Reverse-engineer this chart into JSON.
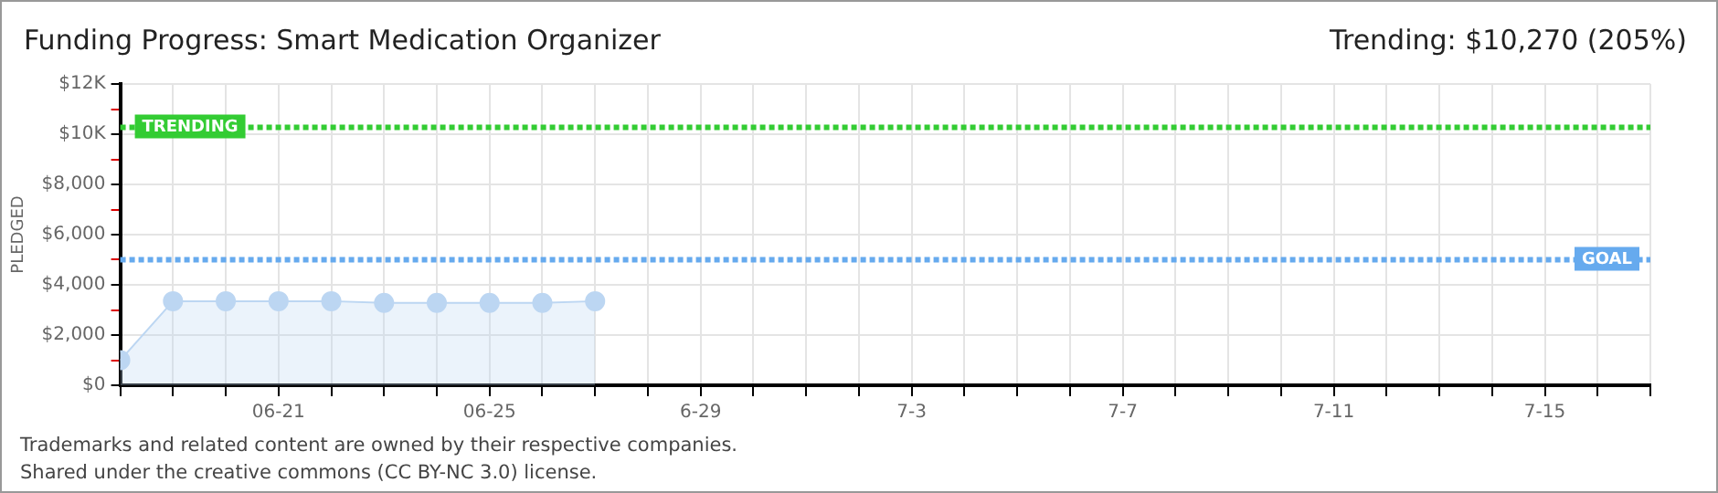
{
  "chart_data": {
    "type": "area",
    "title": "Funding Progress: Smart Medication Organizer",
    "subtitle": "Trending:  $10,270 (205%)",
    "ylabel": "PLEDGED",
    "x": [
      "--06-18",
      "--06-19",
      "--06-20",
      "--06-21",
      "--06-22",
      "--06-23",
      "--06-24",
      "--06-25",
      "--06-26",
      "--06-27"
    ],
    "series": [
      {
        "color": "#bcd6f2",
        "values": [
          1000,
          3350,
          3350,
          3350,
          3350,
          3280,
          3280,
          3280,
          3280,
          3350
        ]
      }
    ],
    "marker": "circle",
    "grid": true,
    "legend": false,
    "xlim": [
      "--06-18",
      "--07-17"
    ],
    "xticks": [
      {
        "value": "--06-18",
        "label": null
      },
      {
        "value": "--06-19",
        "label": null
      },
      {
        "value": "--06-20",
        "label": null
      },
      {
        "value": "--06-21",
        "label": "06-21"
      },
      {
        "value": "--06-22",
        "label": null
      },
      {
        "value": "--06-23",
        "label": null
      },
      {
        "value": "--06-24",
        "label": null
      },
      {
        "value": "--06-25",
        "label": "06-25"
      },
      {
        "value": "--06-26",
        "label": null
      },
      {
        "value": "--06-27",
        "label": null
      },
      {
        "value": "--06-28",
        "label": null
      },
      {
        "value": "--06-29",
        "label": "6-29"
      },
      {
        "value": "--06-30",
        "label": null
      },
      {
        "value": "--07-01",
        "label": null
      },
      {
        "value": "--07-02",
        "label": null
      },
      {
        "value": "--07-03",
        "label": "7-3"
      },
      {
        "value": "--07-04",
        "label": null
      },
      {
        "value": "--07-05",
        "label": null
      },
      {
        "value": "--07-06",
        "label": null
      },
      {
        "value": "--07-07",
        "label": "7-7"
      },
      {
        "value": "--07-08",
        "label": null
      },
      {
        "value": "--07-09",
        "label": null
      },
      {
        "value": "--07-10",
        "label": null
      },
      {
        "value": "--07-11",
        "label": "7-11"
      },
      {
        "value": "--07-12",
        "label": null
      },
      {
        "value": "--07-13",
        "label": null
      },
      {
        "value": "--07-14",
        "label": null
      },
      {
        "value": "--07-15",
        "label": "7-15"
      },
      {
        "value": "--07-16",
        "label": null
      },
      {
        "value": "--07-17",
        "label": null
      }
    ],
    "ylim": [
      0,
      12000
    ],
    "yticks": [
      {
        "value": 0,
        "label": "$0"
      },
      {
        "value": 1000,
        "label": null
      },
      {
        "value": 2000,
        "label": "$2,000"
      },
      {
        "value": 3000,
        "label": null
      },
      {
        "value": 4000,
        "label": "$4,000"
      },
      {
        "value": 5000,
        "label": null
      },
      {
        "value": 6000,
        "label": "$6,000"
      },
      {
        "value": 7000,
        "label": null
      },
      {
        "value": 8000,
        "label": "$8,000"
      },
      {
        "value": 9000,
        "label": null
      },
      {
        "value": 10000,
        "label": "$10K"
      },
      {
        "value": 11000,
        "label": null
      },
      {
        "value": 12000,
        "label": "$12K"
      }
    ],
    "ref_lines": [
      {
        "axis": "y",
        "value": 10270,
        "label": "TRENDING",
        "color": "#33cc33",
        "line_style": "dotted"
      },
      {
        "axis": "y",
        "value": 5000,
        "label": "GOAL",
        "color": "#66aaee",
        "line_style": "dotted"
      }
    ],
    "annotations": [
      "Trademarks and related content are owned by their respective companies.",
      "Shared under the creative commons (CC BY-NC 3.0) license."
    ]
  }
}
